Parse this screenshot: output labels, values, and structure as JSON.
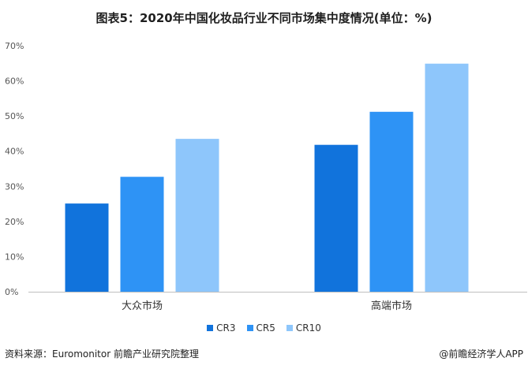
{
  "title": "图表5：2020年中国化妆品行业不同市场集中度情况(单位：%)",
  "source": "资料来源：Euromonitor 前瞻产业研究院整理",
  "credit": "@前瞻经济学人APP",
  "colors": {
    "CR3": "#1173dc",
    "CR5": "#2e93f5",
    "CR10": "#8ec6fb"
  },
  "chart_data": {
    "type": "bar",
    "categories": [
      "大众市场",
      "高端市场"
    ],
    "series": [
      {
        "name": "CR3",
        "values": [
          25.1,
          41.8
        ]
      },
      {
        "name": "CR5",
        "values": [
          32.7,
          51.2
        ]
      },
      {
        "name": "CR10",
        "values": [
          43.5,
          64.9
        ]
      }
    ],
    "yticks": [
      "0%",
      "10%",
      "20%",
      "30%",
      "40%",
      "50%",
      "60%",
      "70%"
    ],
    "ylim": [
      0,
      70
    ],
    "grid": false,
    "legend": "bottom"
  }
}
